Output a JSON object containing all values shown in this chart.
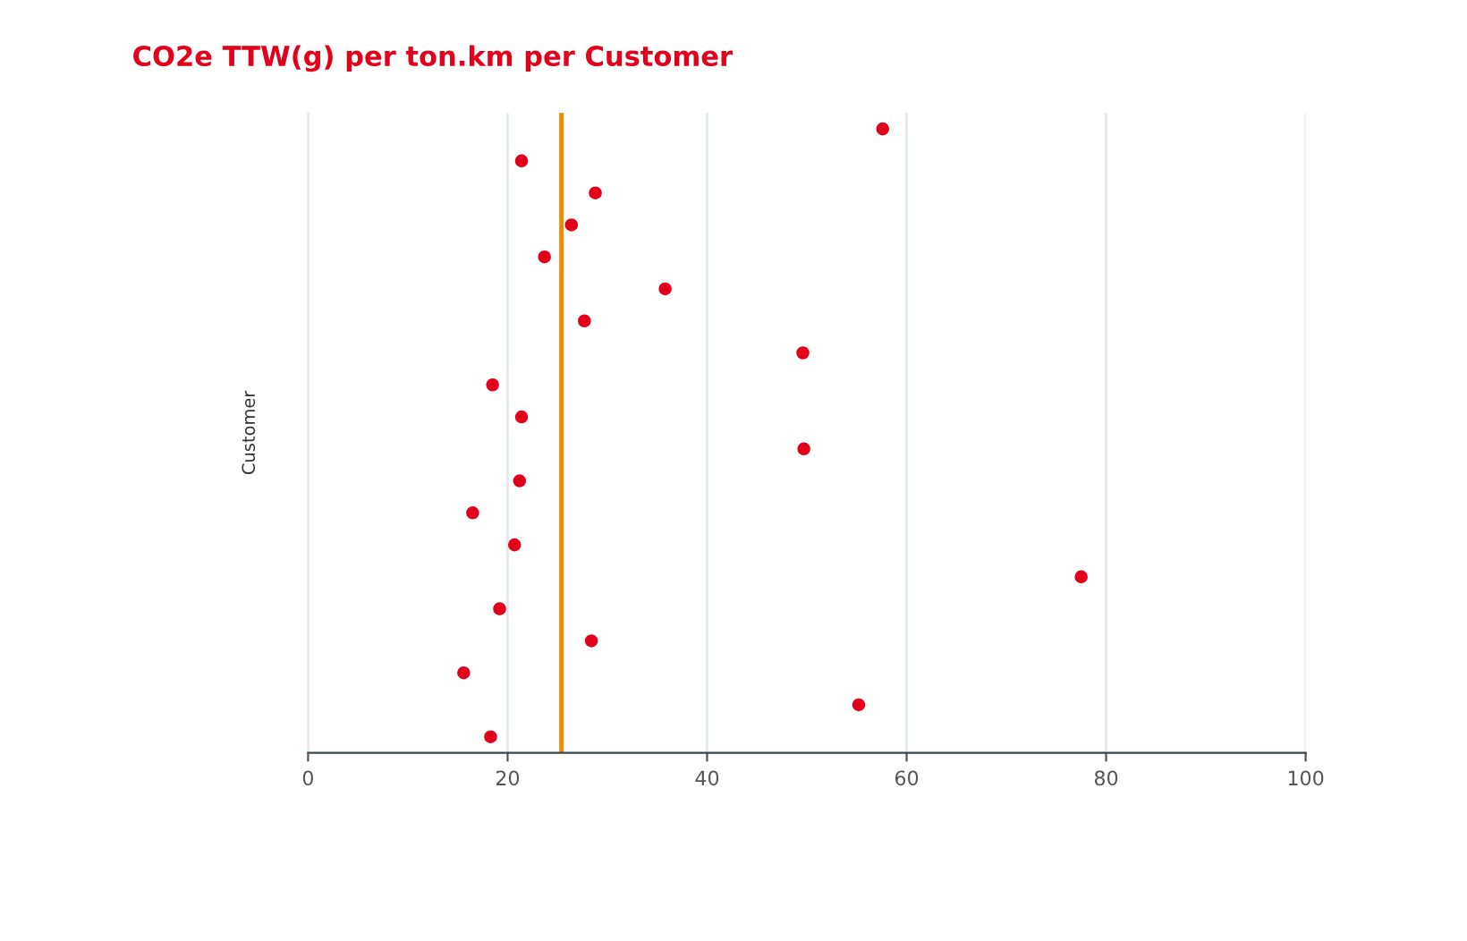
{
  "chart_data": {
    "type": "scatter",
    "orientation": "horizontal",
    "title": "CO2e TTW(g) per ton.km per Customer",
    "ylabel": "Customer",
    "categories": [
      null,
      null,
      null,
      null,
      null,
      null,
      null,
      null,
      null,
      null,
      null,
      null,
      null,
      null,
      null,
      null,
      null,
      null,
      null,
      null
    ],
    "values": [
      57.6,
      21.4,
      28.8,
      26.4,
      23.7,
      35.8,
      27.7,
      49.6,
      18.5,
      21.4,
      49.7,
      21.2,
      16.5,
      20.7,
      77.5,
      19.2,
      28.4,
      15.6,
      55.2,
      18.3
    ],
    "color": "#e2001a",
    "marker": "circle",
    "xlim": [
      0,
      100
    ],
    "xticks": [
      0,
      20,
      40,
      60,
      80,
      100
    ],
    "grid": "x",
    "tick_labels": "x",
    "ref_lines": [
      {
        "axis": "x",
        "value": 25.4,
        "color": "#f08a00"
      }
    ]
  }
}
